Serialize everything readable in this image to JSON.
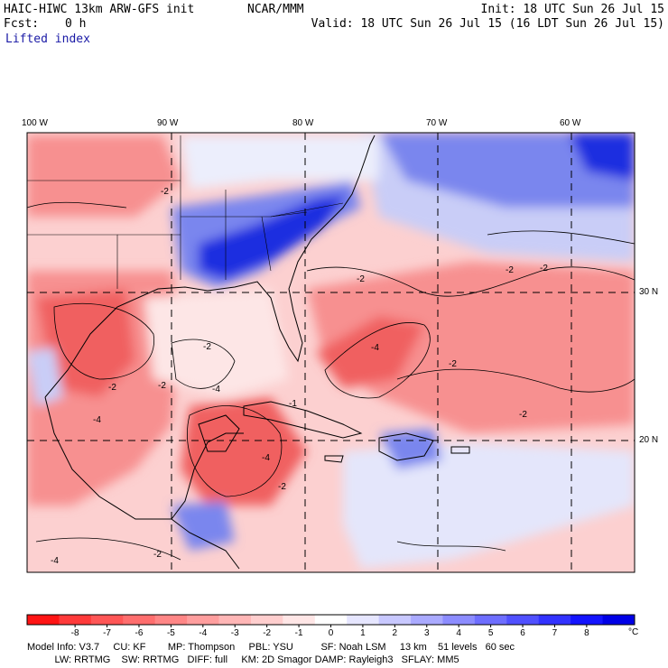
{
  "header": {
    "model_title": "HAIC-HIWC 13km ARW-GFS init",
    "org": "NCAR/MMM",
    "init": "Init: 18 UTC Sun 26 Jul 15",
    "fcst_label": "Fcst:",
    "fcst_value": "0 h",
    "valid": "Valid: 18 UTC Sun 26 Jul 15 (16 LDT Sun 26 Jul 15)",
    "field": "Lifted index"
  },
  "map": {
    "lon_labels": [
      "100 W",
      "90 W",
      "80 W",
      "70 W",
      "60 W"
    ],
    "lat_labels": [
      "30 N",
      "20 N"
    ],
    "contour_labels": [
      "-2",
      "-4",
      "-2",
      "-2",
      "-2",
      "-4",
      "-2",
      "-2",
      "-2",
      "-4",
      "-2",
      "-2",
      "-2",
      "-4",
      "-2",
      "-4",
      "-1"
    ],
    "colors": {
      "strong_blue": "#1f2ee0",
      "mid_blue": "#7a86ee",
      "light_blue": "#c9cdf7",
      "white": "#ffffff",
      "light_red": "#fcd0d0",
      "mid_red": "#f79090",
      "red": "#f06060",
      "strong_red": "#e83838"
    }
  },
  "colorbar": {
    "ticks": [
      "-8",
      "-7",
      "-6",
      "-5",
      "-4",
      "-3",
      "-2",
      "-1",
      "0",
      "1",
      "2",
      "3",
      "4",
      "5",
      "6",
      "7",
      "8"
    ],
    "unit": "°C",
    "colors": [
      "#ff1414",
      "#ff3a3a",
      "#ff5656",
      "#ff6e6e",
      "#ff8686",
      "#ff9e9e",
      "#ffb6b6",
      "#ffcece",
      "#ffe6e6",
      "#ffffff",
      "#e6e6ff",
      "#c8c8ff",
      "#aaaaff",
      "#8c8cff",
      "#6e6eff",
      "#5050ff",
      "#3232ff",
      "#1414ff",
      "#0000e6"
    ]
  },
  "footer": {
    "line1": "Model Info: V3.7     CU: KF        MP: Thompson     PBL: YSU          SF: Noah LSM     13 km    51 levels   60 sec",
    "line2": "          LW: RRTMG    SW: RRTMG   DIFF: full     KM: 2D Smagor DAMP: Rayleigh3   SFLAY: MM5"
  }
}
